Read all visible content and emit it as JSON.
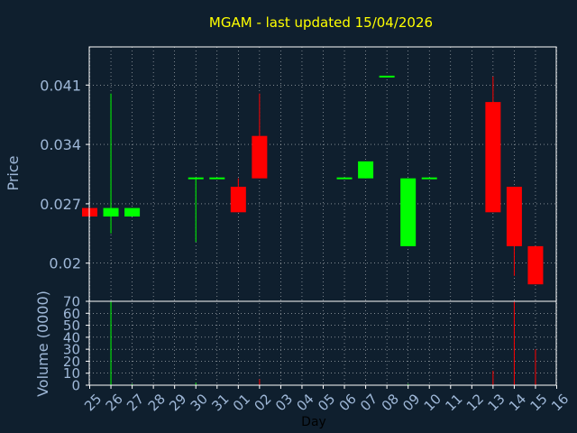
{
  "chart_data": {
    "type": "candlestick",
    "title": "MGAM - last updated 15/04/2026",
    "xlabel": "Day",
    "ylabel": "Price",
    "volume_label": "Volume (0000)",
    "grid": true,
    "colors": {
      "background": "#0f1f2e",
      "up": "#00ff00",
      "down": "#ff0000",
      "frame": "#ffffff",
      "title": "#ffff00",
      "ticks": "#9fb8d8"
    },
    "x_ticks": [
      "25",
      "26",
      "27",
      "28",
      "29",
      "30",
      "31",
      "01",
      "02",
      "03",
      "04",
      "05",
      "06",
      "07",
      "08",
      "09",
      "10",
      "11",
      "12",
      "13",
      "14",
      "15",
      "16"
    ],
    "y_ticks": [
      "0.041",
      "0.034",
      "0.027",
      "0.02"
    ],
    "y_tick_values": [
      0.041,
      0.034,
      0.027,
      0.02
    ],
    "ylim": [
      0.0155,
      0.0455
    ],
    "volume_ticks": [
      "70",
      "60",
      "50",
      "40",
      "30",
      "20",
      "10",
      "0"
    ],
    "volume_tick_values": [
      70,
      60,
      50,
      40,
      30,
      20,
      10,
      0
    ],
    "volume_lim": [
      0,
      70
    ],
    "candles": [
      {
        "x": 0,
        "open": 0.0265,
        "close": 0.0255,
        "high": 0.0265,
        "low": 0.0255,
        "volume": 0
      },
      {
        "x": 1,
        "open": 0.0255,
        "close": 0.0265,
        "high": 0.04,
        "low": 0.0235,
        "volume": 70
      },
      {
        "x": 2,
        "open": 0.0255,
        "close": 0.0265,
        "high": 0.0265,
        "low": 0.0255,
        "volume": 1
      },
      {
        "x": 5,
        "open": 0.03,
        "close": 0.03,
        "high": 0.03,
        "low": 0.0225,
        "volume": 2
      },
      {
        "x": 6,
        "open": 0.03,
        "close": 0.03,
        "high": 0.03,
        "low": 0.03,
        "volume": 0
      },
      {
        "x": 7,
        "open": 0.029,
        "close": 0.026,
        "high": 0.03,
        "low": 0.026,
        "volume": 0
      },
      {
        "x": 8,
        "open": 0.035,
        "close": 0.03,
        "high": 0.04,
        "low": 0.03,
        "volume": 5
      },
      {
        "x": 12,
        "open": 0.03,
        "close": 0.03,
        "high": 0.03,
        "low": 0.03,
        "volume": 0
      },
      {
        "x": 13,
        "open": 0.03,
        "close": 0.032,
        "high": 0.032,
        "low": 0.03,
        "volume": 0
      },
      {
        "x": 14,
        "open": 0.042,
        "close": 0.042,
        "high": 0.042,
        "low": 0.042,
        "volume": 0
      },
      {
        "x": 15,
        "open": 0.022,
        "close": 0.03,
        "high": 0.03,
        "low": 0.022,
        "volume": 1
      },
      {
        "x": 16,
        "open": 0.03,
        "close": 0.03,
        "high": 0.03,
        "low": 0.03,
        "volume": 0
      },
      {
        "x": 19,
        "open": 0.039,
        "close": 0.026,
        "high": 0.042,
        "low": 0.026,
        "volume": 12
      },
      {
        "x": 20,
        "open": 0.029,
        "close": 0.022,
        "high": 0.029,
        "low": 0.0185,
        "volume": 70
      },
      {
        "x": 21,
        "open": 0.022,
        "close": 0.0175,
        "high": 0.022,
        "low": 0.0175,
        "volume": 30
      }
    ]
  }
}
